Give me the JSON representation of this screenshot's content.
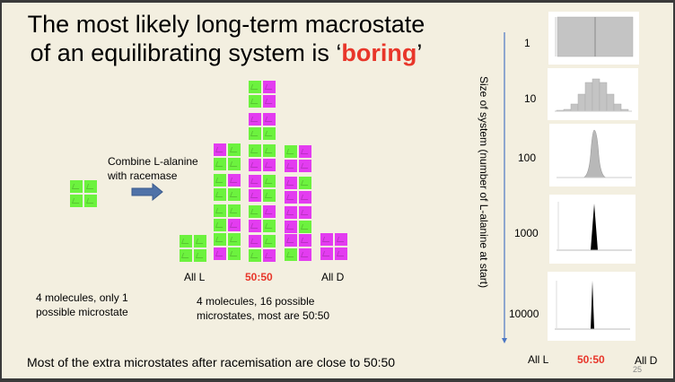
{
  "title": {
    "line1": "The most likely long-term macrostate",
    "line2_prefix": "of an equilibrating system is ‘",
    "line2_emph": "boring",
    "line2_suffix": "’"
  },
  "left": {
    "arrow_caption_1": "Combine L-alanine",
    "arrow_caption_2": "with racemase",
    "caption_1": "4 molecules, only 1",
    "caption_2": "possible microstate",
    "initial_state": "LL/LL"
  },
  "middle": {
    "label_all_l": "All L",
    "label_5050": "50:50",
    "label_all_d": "All D",
    "caption_1": "4 molecules, 16 possible",
    "caption_2": "microstates, most are 50:50",
    "columns": [
      [
        "LL/LL"
      ],
      [
        "DL/LL",
        "LD/LL",
        "LL/LD",
        "LL/DL"
      ],
      [
        "LD/LD",
        "DD/LL",
        "LL/DD",
        "DL/DL",
        "LD/DL",
        "DL/LD"
      ],
      [
        "LD/DD",
        "DL/DD",
        "DD/DL",
        "DD/LD"
      ],
      [
        "DD/DD"
      ]
    ]
  },
  "right": {
    "axis_label": "Size of system (number of L-alanine at start)",
    "sizes": [
      "1",
      "10",
      "100",
      "1000",
      "10000"
    ],
    "bottom_labels": {
      "all_l": "All L",
      "fifty": "50:50",
      "all_d": "All D"
    }
  },
  "footer": {
    "text": "Most of the extra microstates after racemisation are close to 50:50",
    "page_number": "25"
  },
  "colors": {
    "L_alanine": "#6cf23e",
    "D_alanine": "#e33cf0",
    "emphasis": "#e8362a",
    "axis_arrow": "#4a76c4",
    "arrow_fill": "#4f72a8"
  }
}
